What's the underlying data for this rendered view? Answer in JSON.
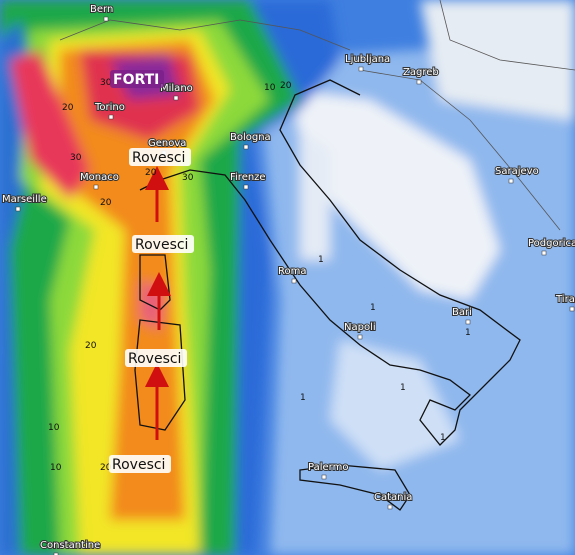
{
  "annotations": [
    "FORTI",
    "Rovesci",
    "Rovesci",
    "Rovesci",
    "Rovesci"
  ],
  "cities": [
    "Bern",
    "Ljubljana",
    "Zagreb",
    "Torino",
    "Milano",
    "Genova",
    "Bologna",
    "Monaco",
    "Marseille",
    "Firenze",
    "Roma",
    "Napoli",
    "Bari",
    "Sarajevo",
    "Podgorica",
    "Palermo",
    "Catania",
    "Constantine",
    "Tira"
  ],
  "contour_labels": [
    "20",
    "30",
    "20",
    "10",
    "20",
    "30",
    "20",
    "30",
    "20",
    "10",
    "20",
    "10",
    "1",
    "1",
    "1",
    "1",
    "1",
    "1"
  ]
}
